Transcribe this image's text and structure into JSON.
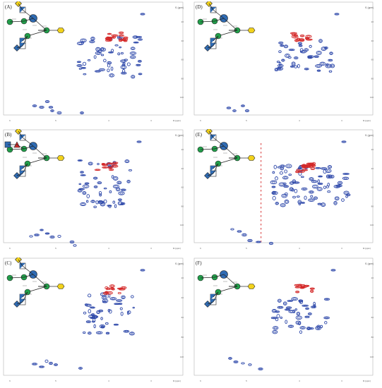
{
  "figure": {
    "panel_labels": [
      "(A)",
      "(B)",
      "(C)",
      "(D)",
      "(E)",
      "(F)"
    ],
    "f1_axis_label": "f1 (ppm)",
    "f2_axis_label": "f2 (ppm)",
    "x_ticks": [
      "6",
      "5",
      "4",
      "3"
    ],
    "y_ticks": [
      "20",
      "40",
      "60",
      "80",
      "100"
    ]
  },
  "colors": {
    "positive_contour": "#2a45a8",
    "negative_contour": "#d42828",
    "glcnac": "#2f6bb3",
    "man_green": "#22a04b",
    "fuc_red": "#d42828",
    "gal_yellow": "#f2d21b",
    "neu5ac_purple": "#8b4aa6",
    "frame": "#b4b4b4"
  },
  "chart_data": [
    {
      "panel": "(A)",
      "type": "heatmap",
      "xlabel": "f2 (ppm)",
      "ylabel": "f1 (ppm)",
      "glycan_symbols": [
        "neu5ac",
        "galactose",
        "glcnac",
        "mannose",
        "mannose",
        "glcnac",
        "glcnac",
        "asn"
      ],
      "negative_cluster": true
    },
    {
      "panel": "(B)",
      "type": "heatmap",
      "xlabel": "f2 (ppm)",
      "ylabel": "f1 (ppm)",
      "glycan_symbols": [
        "glcnac",
        "galactose",
        "fucose",
        "glcnac",
        "mannose",
        "mannose",
        "glcnac",
        "glcnac",
        "asn"
      ],
      "negative_cluster": true
    },
    {
      "panel": "(C)",
      "type": "heatmap",
      "xlabel": "f2 (ppm)",
      "ylabel": "f1 (ppm)",
      "glycan_symbols": [
        "neu5ac",
        "galactose",
        "glcnac",
        "mannose",
        "mannose",
        "glcnac",
        "glcnac",
        "asn"
      ],
      "negative_cluster": true
    },
    {
      "panel": "(D)",
      "type": "heatmap",
      "xlabel": "f2 (ppm)",
      "ylabel": "f1 (ppm)",
      "glycan_symbols": [
        "neu5ac",
        "galactose",
        "glcnac",
        "mannose",
        "mannose",
        "glcnac",
        "glcnac",
        "asn"
      ],
      "negative_cluster": true
    },
    {
      "panel": "(E)",
      "type": "heatmap",
      "xlabel": "f2 (ppm)",
      "ylabel": "f1 (ppm)",
      "glycan_symbols": [
        "neu5ac",
        "galactose",
        "glcnac",
        "mannose",
        "mannose",
        "glcnac",
        "glcnac",
        "asn"
      ],
      "negative_cluster": true
    },
    {
      "panel": "(F)",
      "type": "heatmap",
      "xlabel": "f2 (ppm)",
      "ylabel": "f1 (ppm)",
      "glycan_symbols": [
        "glcnac",
        "glcnac",
        "mannose",
        "mannose",
        "glcnac",
        "glcnac",
        "asn"
      ],
      "negative_cluster": true
    }
  ]
}
